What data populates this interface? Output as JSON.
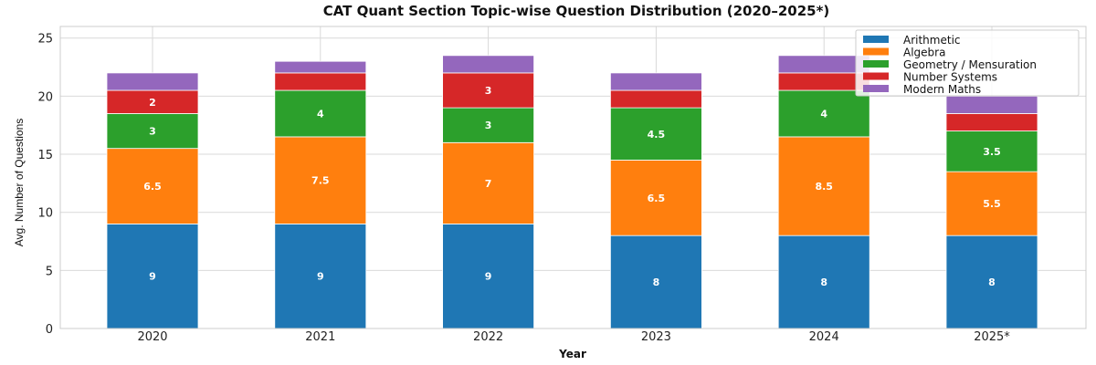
{
  "chart_data": {
    "type": "bar",
    "stacked": true,
    "title": "CAT Quant Section Topic-wise Question Distribution (2020–2025*)",
    "xlabel": "Year",
    "ylabel": "Avg. Number of Questions",
    "ylim": [
      0,
      26
    ],
    "yticks": [
      0,
      5,
      10,
      15,
      20,
      25
    ],
    "grid": true,
    "legend_position": "top-right",
    "categories": [
      "2020",
      "2021",
      "2022",
      "2023",
      "2024",
      "2025*"
    ],
    "series": [
      {
        "name": "Arithmetic",
        "color": "#1f77b4",
        "values": [
          9,
          9,
          9,
          8,
          8,
          8
        ],
        "labels": [
          "9",
          "9",
          "9",
          "8",
          "8",
          "8"
        ]
      },
      {
        "name": "Algebra",
        "color": "#ff7f0e",
        "values": [
          6.5,
          7.5,
          7,
          6.5,
          8.5,
          5.5
        ],
        "labels": [
          "6.5",
          "7.5",
          "7",
          "6.5",
          "8.5",
          "5.5"
        ]
      },
      {
        "name": "Geometry / Mensuration",
        "color": "#2ca02c",
        "values": [
          3,
          4,
          3,
          4.5,
          4,
          3.5
        ],
        "labels": [
          "3",
          "4",
          "3",
          "4.5",
          "4",
          "3.5"
        ]
      },
      {
        "name": "Number Systems",
        "color": "#d62728",
        "values": [
          2,
          1.5,
          3,
          1.5,
          1.5,
          1.5
        ],
        "labels": [
          "2",
          "",
          "3",
          "",
          "",
          ""
        ]
      },
      {
        "name": "Modern Maths",
        "color": "#9467bd",
        "values": [
          1.5,
          1,
          1.5,
          1.5,
          1.5,
          1.5
        ],
        "labels": [
          "",
          "",
          "",
          "",
          "",
          ""
        ]
      }
    ]
  }
}
